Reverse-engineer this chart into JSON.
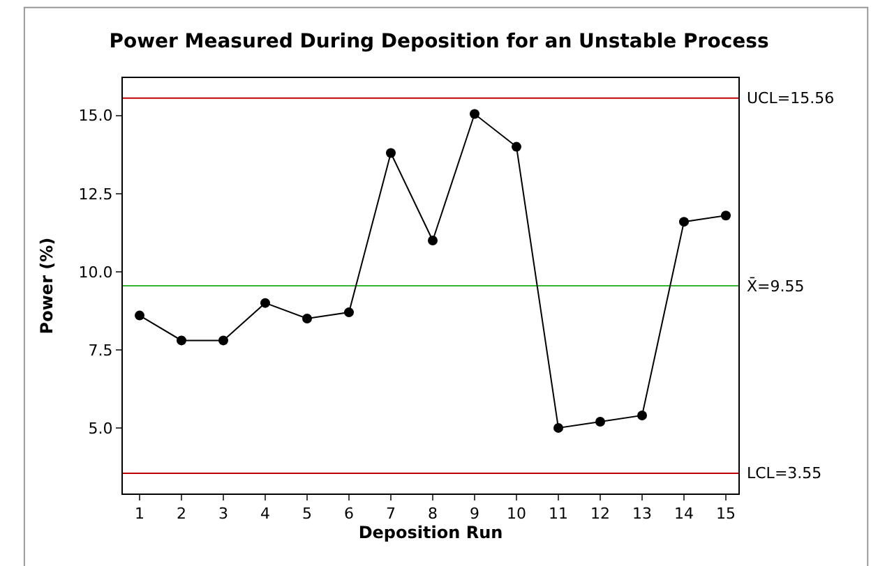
{
  "chart_data": {
    "type": "line",
    "title": "Power Measured During Deposition for an Unstable Process",
    "xlabel": "Deposition Run",
    "ylabel": "Power (%)",
    "x": [
      1,
      2,
      3,
      4,
      5,
      6,
      7,
      8,
      9,
      10,
      11,
      12,
      13,
      14,
      15
    ],
    "series": [
      {
        "color": "#000000",
        "values": [
          8.6,
          7.8,
          7.8,
          9.0,
          8.5,
          8.7,
          13.8,
          11.0,
          15.05,
          14.0,
          5.0,
          5.2,
          5.4,
          11.6,
          11.8
        ]
      }
    ],
    "marker": "circle",
    "line_style": "solid",
    "xlim": [
      0.6,
      15.3
    ],
    "xticks": [
      1,
      2,
      3,
      4,
      5,
      6,
      7,
      8,
      9,
      10,
      11,
      12,
      13,
      14,
      15
    ],
    "ylim": [
      2.9,
      16.2
    ],
    "yticks": [
      "5.0",
      "7.5",
      "10.0",
      "12.5",
      "15.0"
    ],
    "ref_lines": [
      {
        "axis": "y",
        "value": 15.56,
        "label": "UCL=15.56",
        "color": "#c00000"
      },
      {
        "axis": "y",
        "value": 9.55,
        "label": "X̄=9.55",
        "color": "#33b533"
      },
      {
        "axis": "y",
        "value": 3.55,
        "label": "LCL=3.55",
        "color": "#c00000"
      }
    ]
  }
}
